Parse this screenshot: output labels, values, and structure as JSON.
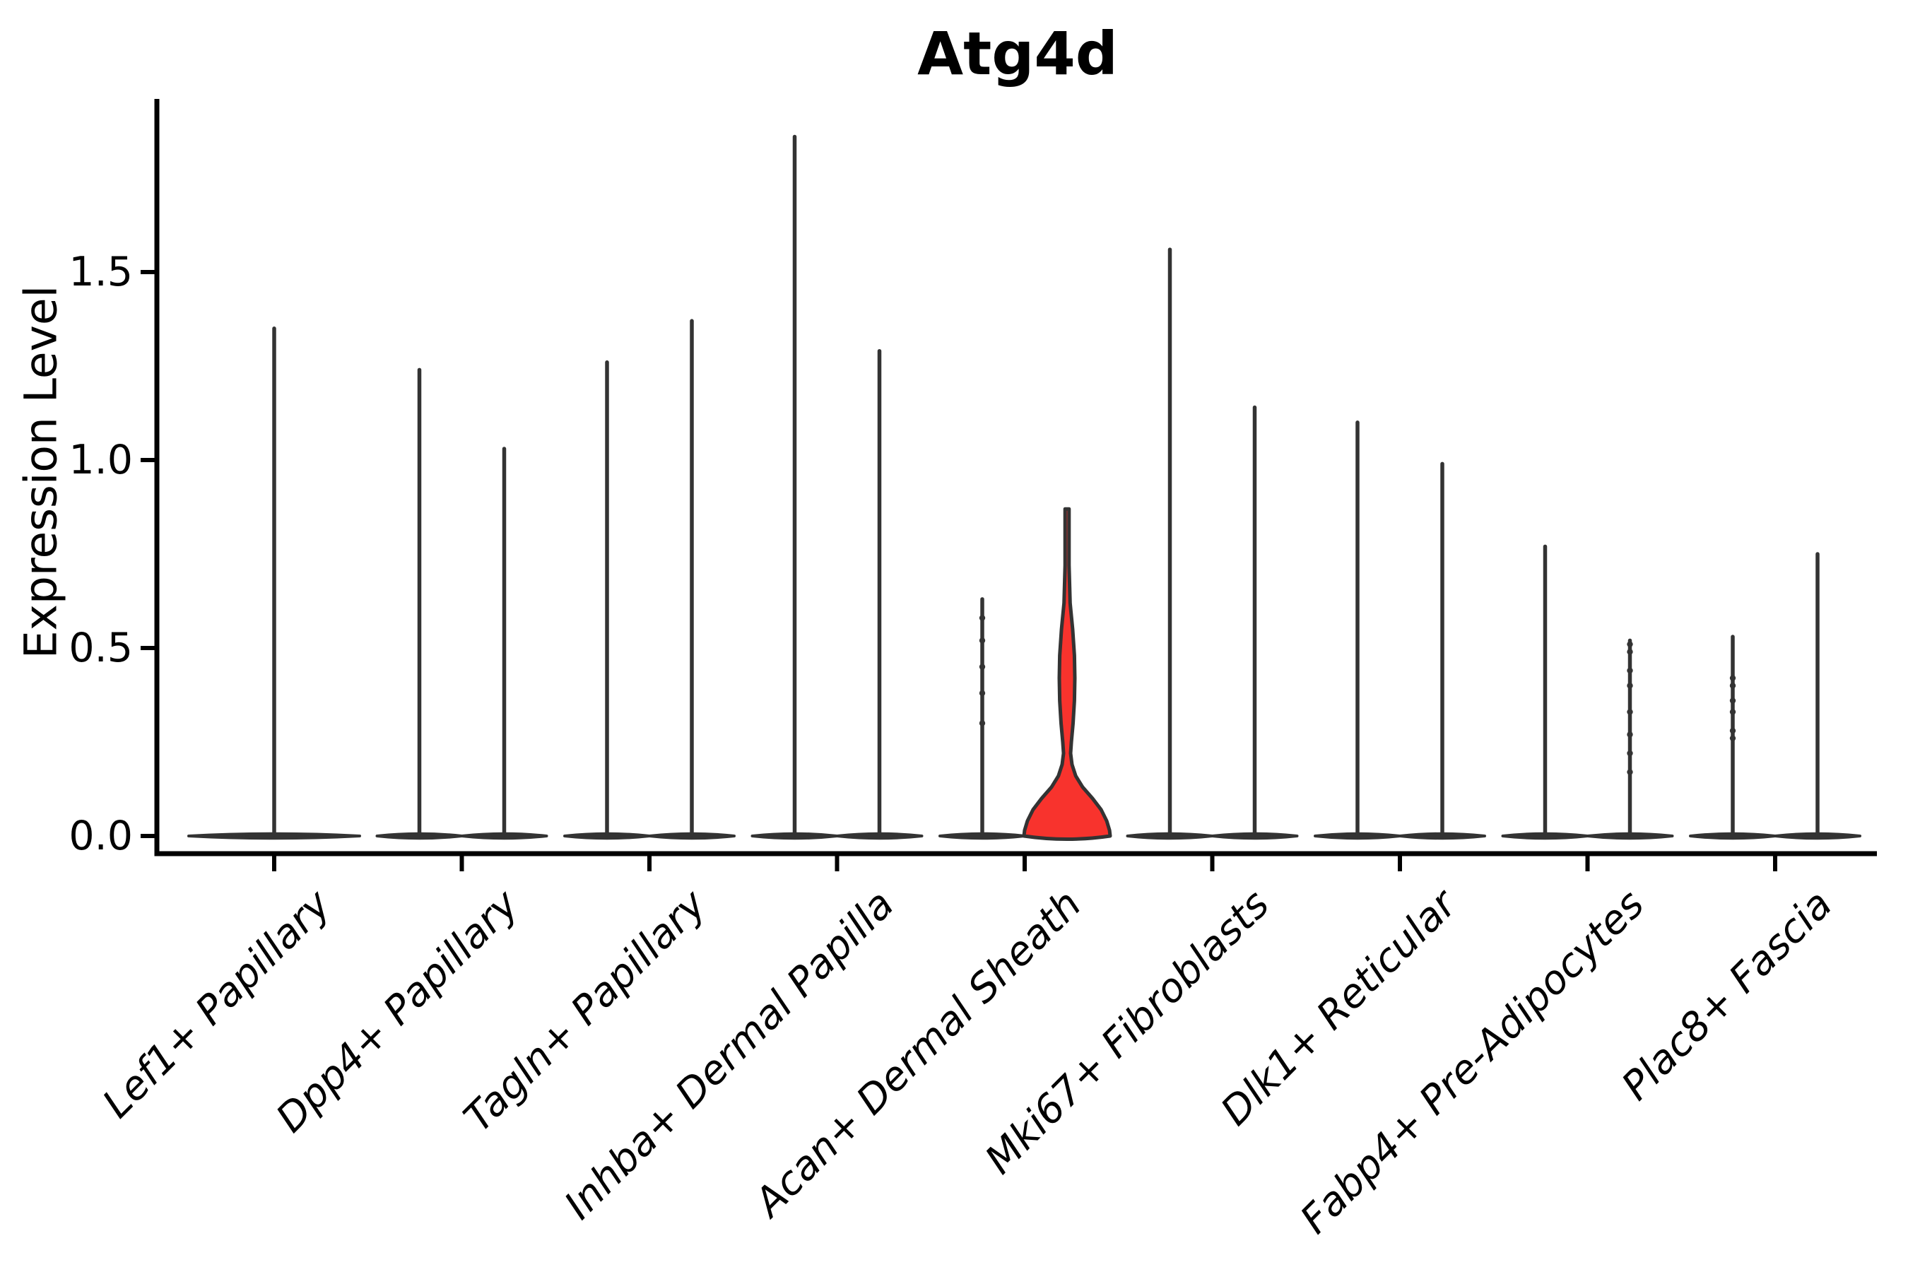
{
  "chart_data": {
    "type": "violin",
    "title": "Atg4d",
    "ylabel": "Expression Level",
    "xlabel": "",
    "yticks": [
      0.0,
      0.5,
      1.0,
      1.5
    ],
    "ytick_labels": [
      "0.0",
      "0.5",
      "1.0",
      "1.5"
    ],
    "ylim": [
      0,
      1.96
    ],
    "grid": false,
    "legend": "none",
    "colors": {
      "outline": "#333333",
      "spine": "#000000",
      "highlight_fill": "#F8332D"
    },
    "categories": [
      {
        "label": "Lef1+ Papillary",
        "violins": [
          {
            "position": "full",
            "max": 1.35
          }
        ]
      },
      {
        "label": "Dpp4+ Papillary",
        "violins": [
          {
            "position": "left",
            "max": 1.24
          },
          {
            "position": "right",
            "max": 1.03
          }
        ]
      },
      {
        "label": "Tagln+ Papillary",
        "violins": [
          {
            "position": "left",
            "max": 1.26
          },
          {
            "position": "right",
            "max": 1.37
          }
        ]
      },
      {
        "label": "Inhba+ Dermal Papilla",
        "violins": [
          {
            "position": "left",
            "max": 1.86
          },
          {
            "position": "right",
            "max": 1.29
          }
        ]
      },
      {
        "label": "Acan+ Dermal Sheath",
        "violins": [
          {
            "position": "left",
            "max": 0.63,
            "dots": [
              0.58,
              0.52,
              0.45,
              0.38,
              0.3
            ]
          },
          {
            "position": "right",
            "max": 0.87,
            "highlight": true,
            "profile": [
              [
                0.0,
                1.0
              ],
              [
                0.015,
                0.985
              ],
              [
                0.04,
                0.92
              ],
              [
                0.07,
                0.79
              ],
              [
                0.1,
                0.59
              ],
              [
                0.13,
                0.36
              ],
              [
                0.16,
                0.2
              ],
              [
                0.19,
                0.115
              ],
              [
                0.22,
                0.082
              ],
              [
                0.25,
                0.1
              ],
              [
                0.3,
                0.14
              ],
              [
                0.36,
                0.17
              ],
              [
                0.42,
                0.18
              ],
              [
                0.48,
                0.17
              ],
              [
                0.55,
                0.13
              ],
              [
                0.62,
                0.07
              ],
              [
                0.72,
                0.046
              ],
              [
                0.87,
                0.046
              ]
            ]
          }
        ]
      },
      {
        "label": "Mki67+ Fibroblasts",
        "violins": [
          {
            "position": "left",
            "max": 1.56
          },
          {
            "position": "right",
            "max": 1.14
          }
        ]
      },
      {
        "label": "Dlk1+ Reticular",
        "violins": [
          {
            "position": "left",
            "max": 1.1
          },
          {
            "position": "right",
            "max": 0.99
          }
        ]
      },
      {
        "label": "Fabp4+ Pre-Adipocytes",
        "violins": [
          {
            "position": "left",
            "max": 0.77
          },
          {
            "position": "right",
            "max": 0.52,
            "dots": [
              0.51,
              0.49,
              0.44,
              0.4,
              0.33,
              0.27,
              0.22,
              0.17
            ]
          }
        ]
      },
      {
        "label": "Plac8+ Fascia",
        "violins": [
          {
            "position": "left",
            "max": 0.53,
            "dots": [
              0.42,
              0.4,
              0.36,
              0.33,
              0.28,
              0.26
            ]
          },
          {
            "position": "right",
            "max": 0.75
          }
        ]
      }
    ]
  }
}
